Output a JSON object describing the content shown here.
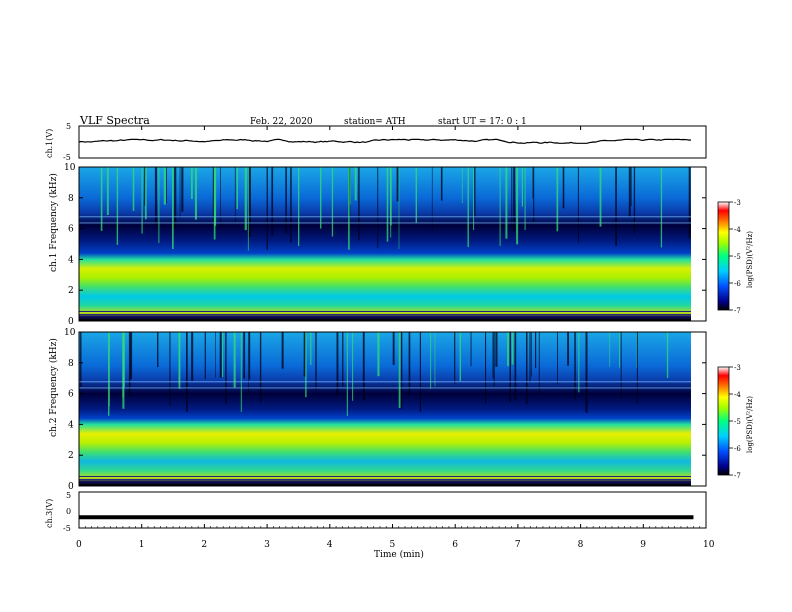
{
  "header": {
    "title": "VLF Spectra",
    "date": "Feb. 22, 2020",
    "station": "station= ATH",
    "start_ut": "start  UT =   17: 0  : 1"
  },
  "colorbar": {
    "label": "log(PSD)(V²/Hz)",
    "ticks": [
      "-3",
      "-4",
      "-5",
      "-6",
      "-7"
    ],
    "range": [
      -7,
      -3
    ]
  },
  "chart_data": [
    {
      "type": "line",
      "title": "",
      "ylabel": "ch.1(V)",
      "xlim": [
        0,
        10
      ],
      "ylim": [
        -5,
        5
      ],
      "yticks": [
        "5",
        "-5"
      ],
      "description_values": {
        "mean_v": 0.2,
        "amplitude_v": 0.6
      }
    },
    {
      "type": "heatmap",
      "title": "",
      "ylabel": "ch.1  Frequency (kHz)",
      "xlim": [
        0,
        10
      ],
      "ylim": [
        0,
        10
      ],
      "yticks": [
        "0",
        "2",
        "4",
        "6",
        "8",
        "10"
      ],
      "data_end_min": 9.8,
      "bands_khz": [
        {
          "from": 0,
          "to": 0.3,
          "log_psd": -7
        },
        {
          "from": 0.3,
          "to": 1.0,
          "log_psd": -5.0
        },
        {
          "from": 1.0,
          "to": 2.0,
          "log_psd": -5.6
        },
        {
          "from": 2.0,
          "to": 3.0,
          "log_psd": -4.9
        },
        {
          "from": 3.0,
          "to": 4.2,
          "log_psd": -4.6
        },
        {
          "from": 4.2,
          "to": 5.0,
          "log_psd": -6.3
        },
        {
          "from": 5.0,
          "to": 6.0,
          "log_psd": -6.8
        },
        {
          "from": 6.0,
          "to": 7.2,
          "log_psd": -6.2
        },
        {
          "from": 7.2,
          "to": 10.0,
          "log_psd": -5.7
        }
      ]
    },
    {
      "type": "heatmap",
      "title": "",
      "ylabel": "ch.2  Frequency (kHz)",
      "xlim": [
        0,
        10
      ],
      "ylim": [
        0,
        10
      ],
      "yticks": [
        "0",
        "2",
        "4",
        "6",
        "8",
        "10"
      ],
      "data_end_min": 9.8,
      "bands_khz": [
        {
          "from": 0,
          "to": 0.3,
          "log_psd": -7
        },
        {
          "from": 0.3,
          "to": 1.0,
          "log_psd": -5.0
        },
        {
          "from": 1.0,
          "to": 2.0,
          "log_psd": -5.4
        },
        {
          "from": 2.0,
          "to": 3.0,
          "log_psd": -4.8
        },
        {
          "from": 3.0,
          "to": 4.2,
          "log_psd": -4.5
        },
        {
          "from": 4.2,
          "to": 5.0,
          "log_psd": -6.2
        },
        {
          "from": 5.0,
          "to": 6.0,
          "log_psd": -6.8
        },
        {
          "from": 6.0,
          "to": 7.2,
          "log_psd": -6.2
        },
        {
          "from": 7.2,
          "to": 10.0,
          "log_psd": -5.7
        }
      ]
    },
    {
      "type": "line",
      "title": "",
      "ylabel": "ch.3(V)",
      "xlabel": "Time  (min)",
      "xlim": [
        0,
        10
      ],
      "ylim": [
        -5,
        5
      ],
      "yticks": [
        "5",
        "0",
        "-5"
      ],
      "xticks": [
        "0",
        "1",
        "2",
        "3",
        "4",
        "5",
        "6",
        "7",
        "8",
        "9",
        "10"
      ],
      "description_values": {
        "constant_v": -2.0
      }
    }
  ]
}
